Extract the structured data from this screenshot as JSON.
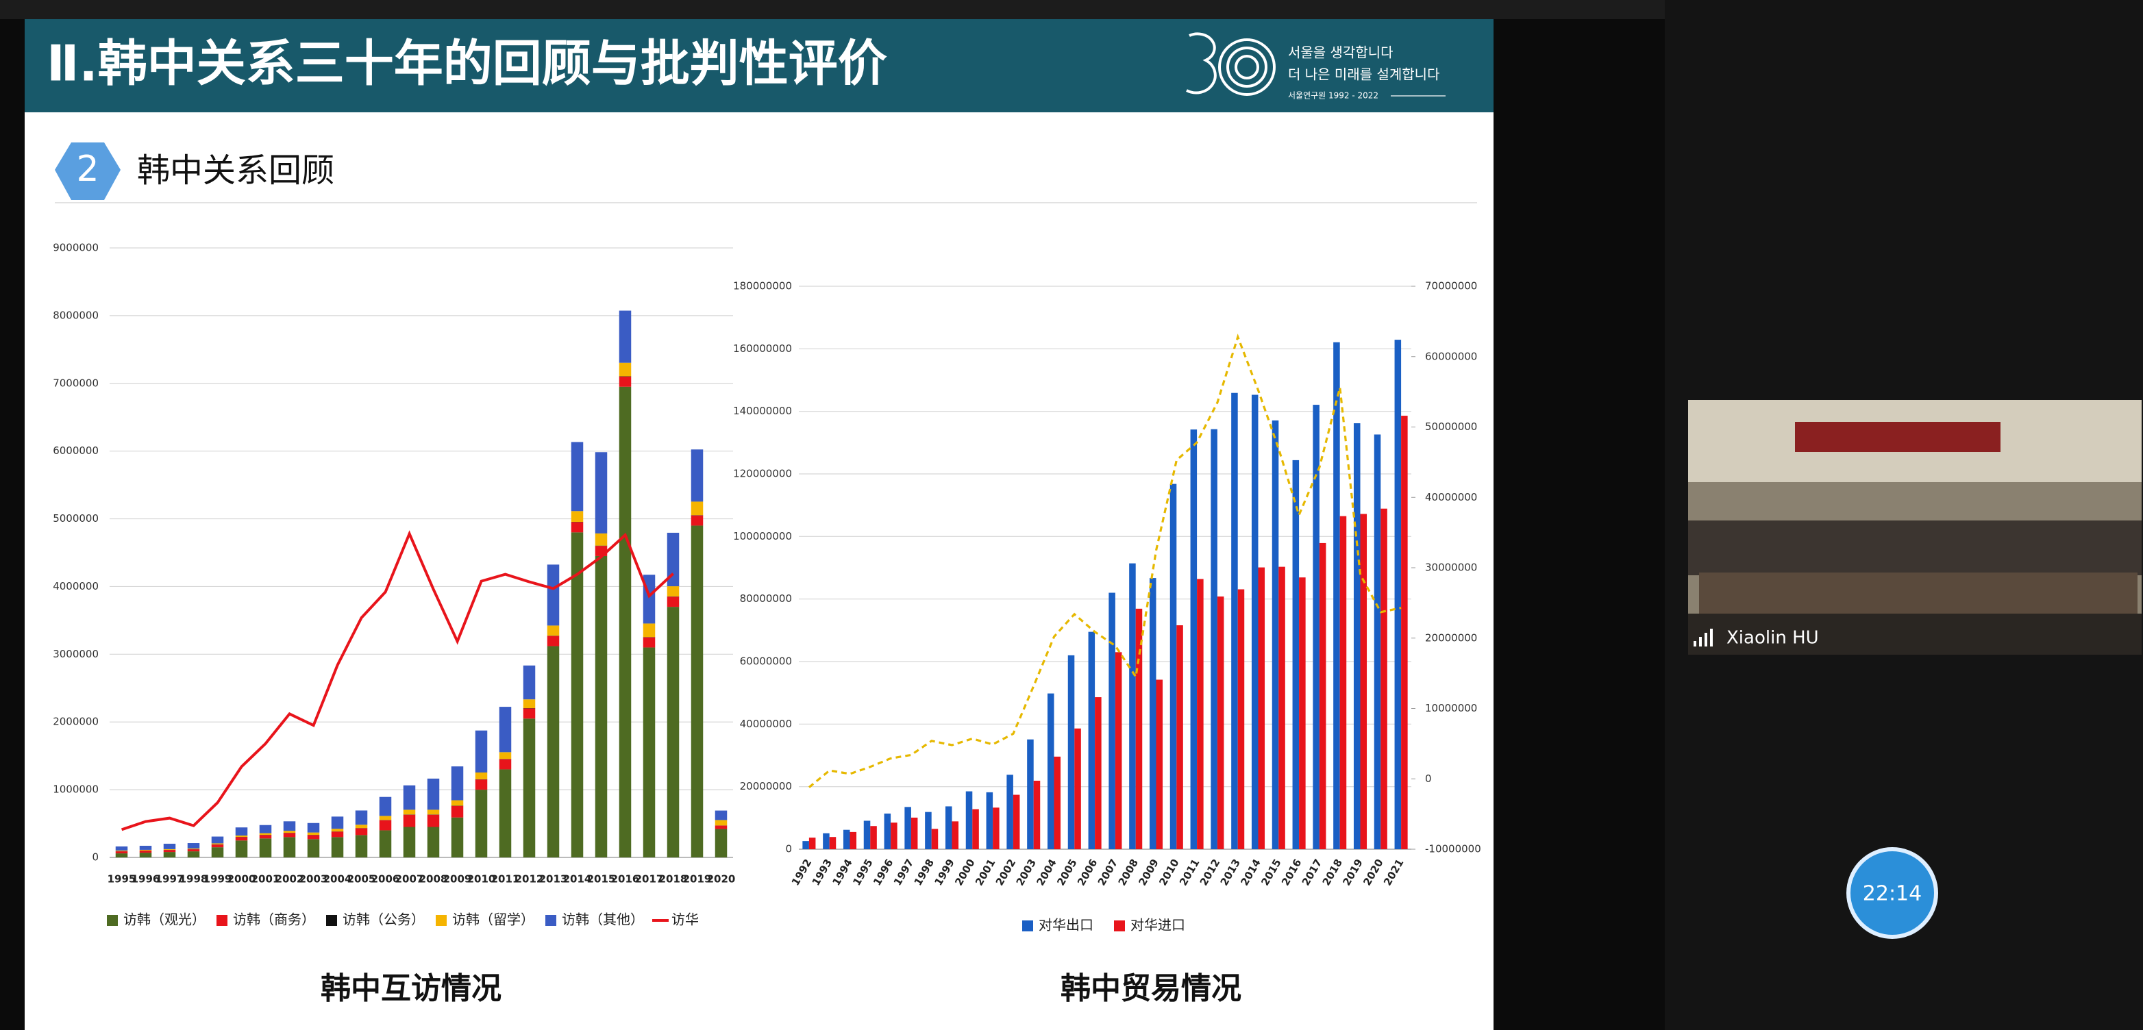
{
  "slide": {
    "title": "Ⅱ.韩中关系三十年的回顾与批判性评价",
    "logo_lines": [
      "서울을 생각합니다",
      "더 나은 미래를 설계합니다",
      "서울연구원 1992 - 2022"
    ],
    "section_number": "2",
    "section_title": "韩中关系回顾"
  },
  "chart_data": [
    {
      "type": "bar",
      "stacked": true,
      "title": "韩中互访情况",
      "grid": true,
      "legend": "bottom",
      "categories": [
        "1995",
        "1996",
        "1997",
        "1998",
        "1999",
        "2000",
        "2001",
        "2002",
        "2003",
        "2004",
        "2005",
        "2006",
        "2007",
        "2008",
        "2009",
        "2010",
        "2011",
        "2012",
        "2013",
        "2014",
        "2015",
        "2016",
        "2017",
        "2018",
        "2019",
        "2020"
      ],
      "ylim": [
        0,
        9000000
      ],
      "yticks": [
        0,
        1000000,
        2000000,
        3000000,
        4000000,
        5000000,
        6000000,
        7000000,
        8000000,
        9000000
      ],
      "series": [
        {
          "name": "访韩（观光）",
          "color": "#4e6b22",
          "values": [
            60000,
            70000,
            80000,
            90000,
            150000,
            250000,
            280000,
            300000,
            270000,
            300000,
            330000,
            400000,
            450000,
            450000,
            590000,
            1000000,
            1300000,
            2050000,
            3120000,
            4800000,
            4450000,
            6950000,
            3100000,
            3700000,
            4900000,
            420000
          ]
        },
        {
          "name": "访韩（商务）",
          "color": "#e8141b",
          "values": [
            30000,
            30000,
            30000,
            30000,
            40000,
            50000,
            50000,
            60000,
            60000,
            80000,
            100000,
            150000,
            180000,
            180000,
            170000,
            150000,
            150000,
            150000,
            150000,
            150000,
            150000,
            150000,
            150000,
            150000,
            150000,
            50000
          ]
        },
        {
          "name": "访韩（公务）",
          "color": "#111111",
          "values": [
            2000,
            2000,
            2000,
            2000,
            3000,
            3000,
            3000,
            3000,
            3000,
            3000,
            3000,
            3000,
            4000,
            4000,
            4000,
            4000,
            4000,
            4000,
            4000,
            4000,
            4000,
            4000,
            4000,
            4000,
            4000,
            2000
          ]
        },
        {
          "name": "访韩（留学）",
          "color": "#f5b400",
          "values": [
            10000,
            10000,
            10000,
            10000,
            15000,
            20000,
            25000,
            30000,
            35000,
            40000,
            50000,
            60000,
            70000,
            70000,
            80000,
            100000,
            100000,
            130000,
            150000,
            160000,
            180000,
            200000,
            200000,
            150000,
            200000,
            80000
          ]
        },
        {
          "name": "访韩（其他）",
          "color": "#3a5cc4",
          "values": [
            60000,
            60000,
            80000,
            80000,
            100000,
            120000,
            120000,
            140000,
            140000,
            180000,
            210000,
            280000,
            360000,
            460000,
            500000,
            620000,
            670000,
            500000,
            900000,
            1020000,
            1200000,
            770000,
            720000,
            790000,
            770000,
            140000
          ]
        },
        {
          "name": "访华",
          "type": "line",
          "color": "#e8141b",
          "values": [
            410000,
            530000,
            580000,
            470000,
            810000,
            1340000,
            1680000,
            2120000,
            1950000,
            2840000,
            3540000,
            3920000,
            4780000,
            3960000,
            3190000,
            4080000,
            4180000,
            4070000,
            3970000,
            4180000,
            4440000,
            4760000,
            3860000,
            4190000,
            null,
            null
          ]
        }
      ]
    },
    {
      "type": "bar",
      "stacked": false,
      "title": "韩中贸易情况",
      "grid": true,
      "legend": "bottom",
      "categories": [
        "1992",
        "1993",
        "1994",
        "1995",
        "1996",
        "1997",
        "1998",
        "1999",
        "2000",
        "2001",
        "2002",
        "2003",
        "2004",
        "2005",
        "2006",
        "2007",
        "2008",
        "2009",
        "2010",
        "2011",
        "2012",
        "2013",
        "2014",
        "2015",
        "2016",
        "2017",
        "2018",
        "2019",
        "2020",
        "2021"
      ],
      "ylim": [
        0,
        180000000
      ],
      "yticks": [
        0,
        20000000,
        40000000,
        60000000,
        80000000,
        100000000,
        120000000,
        140000000,
        160000000,
        180000000
      ],
      "y2lim": [
        -10000000,
        70000000
      ],
      "y2ticks": [
        -10000000,
        0,
        10000000,
        20000000,
        30000000,
        40000000,
        50000000,
        60000000,
        70000000
      ],
      "series": [
        {
          "name": "对华出口",
          "color": "#1a5fc4",
          "values": [
            2600000,
            5100000,
            6200000,
            9100000,
            11400000,
            13500000,
            11900000,
            13700000,
            18500000,
            18200000,
            23800000,
            35100000,
            49800000,
            62000000,
            69500000,
            82000000,
            91400000,
            86700000,
            116800000,
            134200000,
            134300000,
            145900000,
            145300000,
            137100000,
            124400000,
            142100000,
            162100000,
            136200000,
            132600000,
            162900000
          ]
        },
        {
          "name": "对华进口",
          "color": "#e8141b",
          "values": [
            3700000,
            3900000,
            5500000,
            7400000,
            8500000,
            10100000,
            6500000,
            8900000,
            12800000,
            13300000,
            17400000,
            21900000,
            29600000,
            38600000,
            48600000,
            63000000,
            76900000,
            54200000,
            71600000,
            86400000,
            80800000,
            83100000,
            90100000,
            90300000,
            86900000,
            97900000,
            106500000,
            107200000,
            108900000,
            138600000
          ]
        },
        {
          "type": "line",
          "axis": "y2",
          "dashed": true,
          "color": "#e6b800",
          "values": [
            -1200000,
            1200000,
            700000,
            1700000,
            2900000,
            3400000,
            5400000,
            4800000,
            5700000,
            4900000,
            6400000,
            13200000,
            20200000,
            23400000,
            20900000,
            18900000,
            14500000,
            32500000,
            45300000,
            47800000,
            53500000,
            62800000,
            55200000,
            46900000,
            37500000,
            44300000,
            55600000,
            29000000,
            23700000,
            24300000
          ]
        }
      ]
    }
  ],
  "video": {
    "participant_name": "Xiaolin HU"
  },
  "timer": "22:14"
}
